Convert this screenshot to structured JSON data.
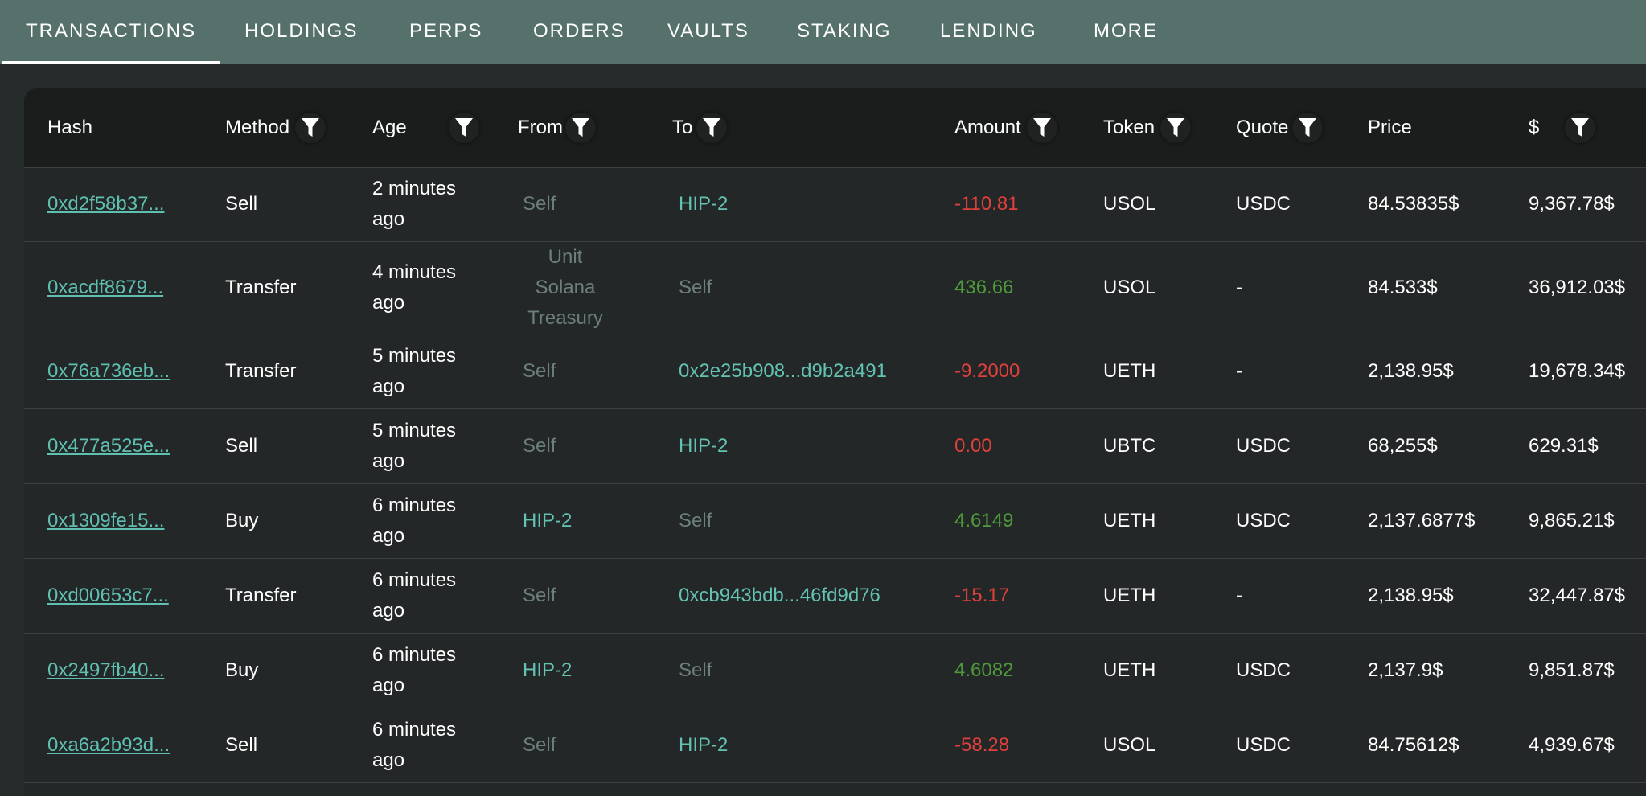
{
  "tabs": [
    {
      "label": "TRANSACTIONS",
      "active": true
    },
    {
      "label": "HOLDINGS",
      "active": false
    },
    {
      "label": "PERPS",
      "active": false
    },
    {
      "label": "ORDERS",
      "active": false
    },
    {
      "label": "VAULTS",
      "active": false
    },
    {
      "label": "STAKING",
      "active": false
    },
    {
      "label": "LENDING",
      "active": false
    },
    {
      "label": "MORE",
      "active": false
    }
  ],
  "columns": {
    "hash": "Hash",
    "method": "Method",
    "age": "Age",
    "from": "From",
    "to": "To",
    "amount": "Amount",
    "token": "Token",
    "quote": "Quote",
    "price": "Price",
    "usd": "$"
  },
  "icons": {
    "filter": "filter-icon"
  },
  "colors": {
    "tabbar": "#56716c",
    "negative": "#e0403c",
    "positive": "#4e9a3a",
    "address": "#63c2b2",
    "self": "#6d7f7b"
  },
  "rows": [
    {
      "hash": "0xd2f58b37...",
      "method": "Sell",
      "age": "2 minutes ago",
      "from": "Self",
      "to": "HIP-2",
      "amount": "-110.81",
      "token": "USOL",
      "quote": "USDC",
      "price": "84.53835$",
      "usd": "9,367.78$"
    },
    {
      "hash": "0xacdf8679...",
      "method": "Transfer",
      "age": "4 minutes ago",
      "from": "Unit Solana Treasury",
      "to": "Self",
      "amount": "436.66",
      "token": "USOL",
      "quote": "-",
      "price": "84.533$",
      "usd": "36,912.03$"
    },
    {
      "hash": "0x76a736eb...",
      "method": "Transfer",
      "age": "5 minutes ago",
      "from": "Self",
      "to": "0x2e25b908...d9b2a491",
      "amount": "-9.2000",
      "token": "UETH",
      "quote": "-",
      "price": "2,138.95$",
      "usd": "19,678.34$"
    },
    {
      "hash": "0x477a525e...",
      "method": "Sell",
      "age": "5 minutes ago",
      "from": "Self",
      "to": "HIP-2",
      "amount": "0.00",
      "token": "UBTC",
      "quote": "USDC",
      "price": "68,255$",
      "usd": "629.31$"
    },
    {
      "hash": "0x1309fe15...",
      "method": "Buy",
      "age": "6 minutes ago",
      "from": "HIP-2",
      "to": "Self",
      "amount": "4.6149",
      "token": "UETH",
      "quote": "USDC",
      "price": "2,137.6877$",
      "usd": "9,865.21$"
    },
    {
      "hash": "0xd00653c7...",
      "method": "Transfer",
      "age": "6 minutes ago",
      "from": "Self",
      "to": "0xcb943bdb...46fd9d76",
      "amount": "-15.17",
      "token": "UETH",
      "quote": "-",
      "price": "2,138.95$",
      "usd": "32,447.87$"
    },
    {
      "hash": "0x2497fb40...",
      "method": "Buy",
      "age": "6 minutes ago",
      "from": "HIP-2",
      "to": "Self",
      "amount": "4.6082",
      "token": "UETH",
      "quote": "USDC",
      "price": "2,137.9$",
      "usd": "9,851.87$"
    },
    {
      "hash": "0xa6a2b93d...",
      "method": "Sell",
      "age": "6 minutes ago",
      "from": "Self",
      "to": "HIP-2",
      "amount": "-58.28",
      "token": "USOL",
      "quote": "USDC",
      "price": "84.75612$",
      "usd": "4,939.67$"
    }
  ]
}
